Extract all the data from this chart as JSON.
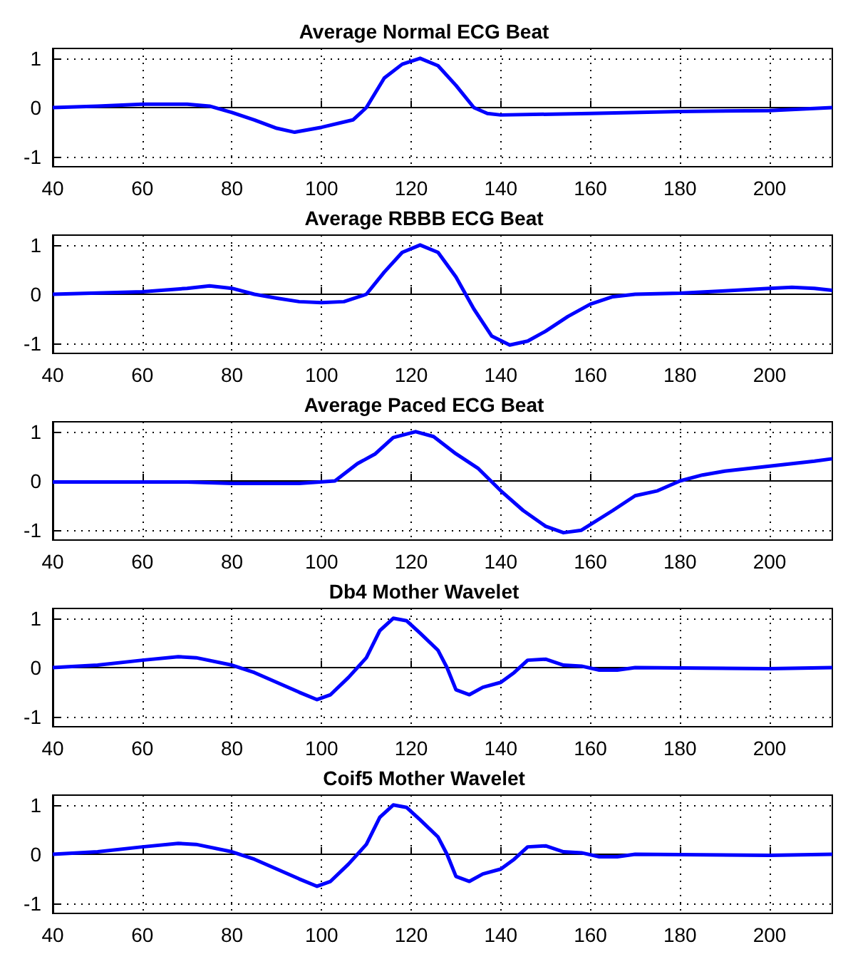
{
  "chart_data": [
    {
      "type": "line",
      "title": "Average Normal ECG Beat",
      "xlim": [
        40,
        214
      ],
      "ylim": [
        -1.2,
        1.2
      ],
      "xticks": [
        40,
        60,
        80,
        100,
        120,
        140,
        160,
        180,
        200
      ],
      "yticks": [
        -1,
        0,
        1
      ],
      "grid": true,
      "marker": "none",
      "series": [
        {
          "color": "#0000ff",
          "x": [
            40,
            50,
            60,
            70,
            75,
            80,
            85,
            90,
            94,
            100,
            107,
            110,
            114,
            118,
            122,
            126,
            130,
            134,
            137,
            140,
            160,
            180,
            200,
            214
          ],
          "values": [
            0,
            0.03,
            0.07,
            0.07,
            0.03,
            -0.1,
            -0.25,
            -0.42,
            -0.5,
            -0.4,
            -0.25,
            0,
            0.6,
            0.88,
            1.0,
            0.85,
            0.45,
            0,
            -0.12,
            -0.15,
            -0.12,
            -0.08,
            -0.06,
            0
          ]
        }
      ]
    },
    {
      "type": "line",
      "title": "Average RBBB ECG Beat",
      "xlim": [
        40,
        214
      ],
      "ylim": [
        -1.2,
        1.2
      ],
      "xticks": [
        40,
        60,
        80,
        100,
        120,
        140,
        160,
        180,
        200
      ],
      "yticks": [
        -1,
        0,
        1
      ],
      "grid": true,
      "marker": "none",
      "series": [
        {
          "color": "#0000ff",
          "x": [
            40,
            60,
            70,
            75,
            80,
            85,
            90,
            95,
            100,
            105,
            110,
            114,
            118,
            122,
            126,
            130,
            134,
            138,
            142,
            146,
            150,
            155,
            160,
            165,
            170,
            180,
            190,
            200,
            205,
            210,
            214
          ],
          "values": [
            0,
            0.05,
            0.12,
            0.17,
            0.12,
            0,
            -0.08,
            -0.15,
            -0.17,
            -0.15,
            0,
            0.45,
            0.85,
            1.0,
            0.85,
            0.35,
            -0.3,
            -0.85,
            -1.03,
            -0.95,
            -0.75,
            -0.45,
            -0.2,
            -0.05,
            0,
            0.02,
            0.07,
            0.12,
            0.14,
            0.12,
            0.08
          ]
        }
      ]
    },
    {
      "type": "line",
      "title": "Average Paced ECG Beat",
      "xlim": [
        40,
        214
      ],
      "ylim": [
        -1.2,
        1.2
      ],
      "xticks": [
        40,
        60,
        80,
        100,
        120,
        140,
        160,
        180,
        200
      ],
      "yticks": [
        -1,
        0,
        1
      ],
      "grid": true,
      "marker": "none",
      "series": [
        {
          "color": "#0000ff",
          "x": [
            40,
            70,
            80,
            95,
            103,
            108,
            112,
            116,
            121,
            125,
            130,
            135,
            140,
            145,
            150,
            154,
            158,
            165,
            170,
            175,
            180,
            185,
            190,
            200,
            210,
            214
          ],
          "values": [
            -0.02,
            -0.02,
            -0.05,
            -0.05,
            0,
            0.35,
            0.55,
            0.88,
            1.0,
            0.9,
            0.55,
            0.25,
            -0.2,
            -0.6,
            -0.92,
            -1.05,
            -1.0,
            -0.6,
            -0.3,
            -0.2,
            0,
            0.12,
            0.2,
            0.3,
            0.4,
            0.45
          ]
        }
      ]
    },
    {
      "type": "line",
      "title": "Db4 Mother Wavelet",
      "xlim": [
        40,
        214
      ],
      "ylim": [
        -1.2,
        1.2
      ],
      "xticks": [
        40,
        60,
        80,
        100,
        120,
        140,
        160,
        180,
        200
      ],
      "yticks": [
        -1,
        0,
        1
      ],
      "grid": true,
      "marker": "none",
      "series": [
        {
          "color": "#0000ff",
          "x": [
            40,
            50,
            60,
            68,
            72,
            80,
            85,
            90,
            95,
            99,
            102,
            106,
            110,
            113,
            116,
            119,
            122,
            126,
            128,
            130,
            133,
            136,
            140,
            143,
            146,
            150,
            154,
            158,
            162,
            166,
            170,
            200,
            214
          ],
          "values": [
            0,
            0.05,
            0.15,
            0.22,
            0.2,
            0.05,
            -0.1,
            -0.3,
            -0.5,
            -0.65,
            -0.55,
            -0.2,
            0.2,
            0.75,
            1.0,
            0.95,
            0.7,
            0.35,
            0,
            -0.45,
            -0.55,
            -0.4,
            -0.3,
            -0.1,
            0.15,
            0.17,
            0.05,
            0.03,
            -0.05,
            -0.05,
            0,
            -0.02,
            0
          ]
        }
      ]
    },
    {
      "type": "line",
      "title": "Coif5 Mother Wavelet",
      "xlim": [
        40,
        214
      ],
      "ylim": [
        -1.2,
        1.2
      ],
      "xticks": [
        40,
        60,
        80,
        100,
        120,
        140,
        160,
        180,
        200
      ],
      "yticks": [
        -1,
        0,
        1
      ],
      "grid": true,
      "marker": "none",
      "series": [
        {
          "color": "#0000ff",
          "x": [
            40,
            50,
            60,
            68,
            72,
            80,
            85,
            90,
            95,
            99,
            102,
            106,
            110,
            113,
            116,
            119,
            122,
            126,
            128,
            130,
            133,
            136,
            140,
            143,
            146,
            150,
            154,
            158,
            162,
            166,
            170,
            200,
            214
          ],
          "values": [
            0,
            0.05,
            0.15,
            0.22,
            0.2,
            0.05,
            -0.1,
            -0.3,
            -0.5,
            -0.65,
            -0.55,
            -0.2,
            0.2,
            0.75,
            1.0,
            0.95,
            0.7,
            0.35,
            0,
            -0.45,
            -0.55,
            -0.4,
            -0.3,
            -0.1,
            0.15,
            0.17,
            0.05,
            0.03,
            -0.05,
            -0.05,
            0,
            -0.02,
            0
          ]
        }
      ]
    }
  ]
}
